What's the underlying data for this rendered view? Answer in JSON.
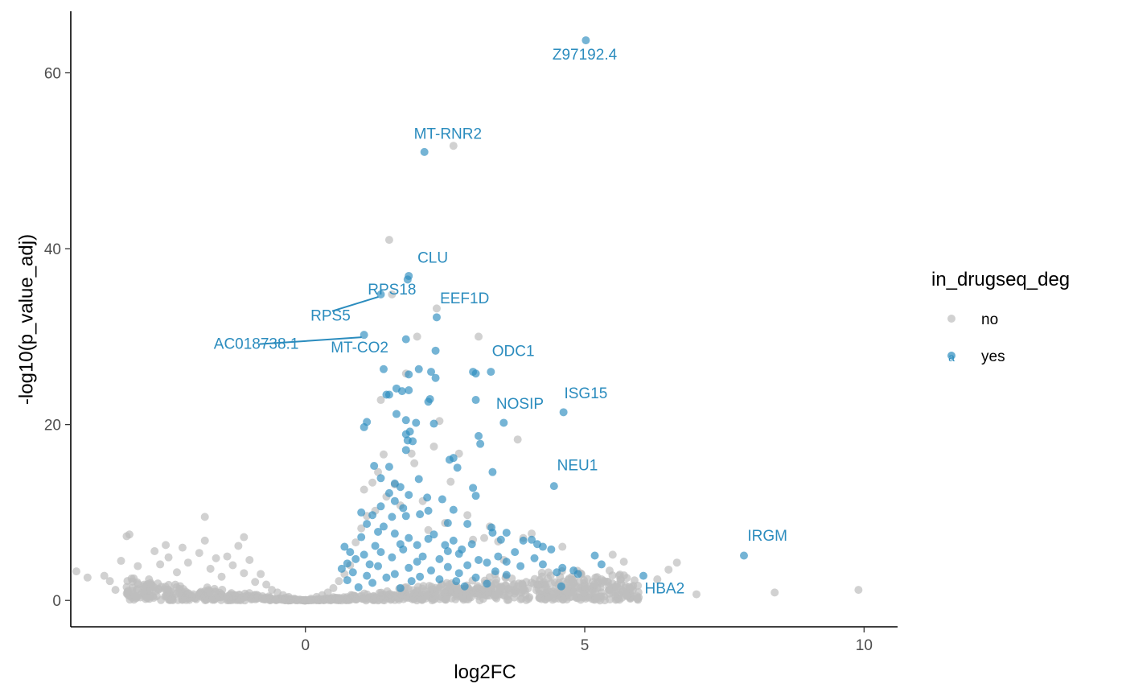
{
  "chart_data": {
    "type": "scatter",
    "title": "",
    "xlabel": "log2FC",
    "ylabel": "-log10(p_value_adj)",
    "xlim": [
      -4.2,
      10.6
    ],
    "ylim": [
      -3,
      67
    ],
    "x_ticks": [
      "0",
      "5",
      "10"
    ],
    "x_tick_values": [
      0,
      5,
      10
    ],
    "y_ticks": [
      "0",
      "20",
      "40",
      "60"
    ],
    "y_tick_values": [
      0,
      20,
      40,
      60
    ],
    "grid": false,
    "legend": {
      "title": "in_drugseq_deg",
      "position": "right",
      "entries": [
        {
          "label": "no",
          "color": "#bebebe"
        },
        {
          "label": "yes",
          "color": "#2b8cbe"
        }
      ]
    },
    "colors": {
      "no": "#bebebe",
      "yes": "#2b8cbe",
      "label": "#2b8cbe"
    },
    "series": [
      {
        "name": "no",
        "points": [
          [
            -4.1,
            3.3
          ],
          [
            -3.9,
            2.6
          ],
          [
            -3.6,
            2.8
          ],
          [
            -3.5,
            2.2
          ],
          [
            -3.4,
            1.2
          ],
          [
            -3.3,
            4.5
          ],
          [
            -3.2,
            7.3
          ],
          [
            -3.15,
            7.5
          ],
          [
            -3.1,
            1.1
          ],
          [
            -3.0,
            3.9
          ],
          [
            -2.9,
            1.6
          ],
          [
            -2.8,
            2.4
          ],
          [
            -2.7,
            5.6
          ],
          [
            -2.6,
            4.1
          ],
          [
            -2.5,
            6.3
          ],
          [
            -2.45,
            4.9
          ],
          [
            -2.3,
            3.2
          ],
          [
            -2.2,
            6.0
          ],
          [
            -2.1,
            4.3
          ],
          [
            -1.9,
            5.4
          ],
          [
            -1.8,
            9.5
          ],
          [
            -1.8,
            6.8
          ],
          [
            -1.7,
            3.6
          ],
          [
            -1.6,
            4.8
          ],
          [
            -1.5,
            2.7
          ],
          [
            -1.4,
            5.0
          ],
          [
            -1.3,
            4.0
          ],
          [
            -1.2,
            6.2
          ],
          [
            -1.1,
            3.1
          ],
          [
            -1.1,
            7.2
          ],
          [
            -1.0,
            4.6
          ],
          [
            -0.9,
            2.1
          ],
          [
            -0.8,
            3.0
          ],
          [
            -0.7,
            1.8
          ],
          [
            -0.6,
            1.2
          ],
          [
            -0.5,
            0.9
          ],
          [
            -0.4,
            0.6
          ],
          [
            -0.3,
            0.4
          ],
          [
            -0.2,
            0.2
          ],
          [
            -0.1,
            0.1
          ],
          [
            0.0,
            0.05
          ],
          [
            0.1,
            0.2
          ],
          [
            0.2,
            0.4
          ],
          [
            0.3,
            0.6
          ],
          [
            0.4,
            0.9
          ],
          [
            0.5,
            1.4
          ],
          [
            0.6,
            2.2
          ],
          [
            0.7,
            3.0
          ],
          [
            0.8,
            4.0
          ],
          [
            0.9,
            6.6
          ],
          [
            1.0,
            8.2
          ],
          [
            1.05,
            12.6
          ],
          [
            1.1,
            9.6
          ],
          [
            1.2,
            13.4
          ],
          [
            1.25,
            10.2
          ],
          [
            1.3,
            14.6
          ],
          [
            1.35,
            22.8
          ],
          [
            1.4,
            16.6
          ],
          [
            1.45,
            11.8
          ],
          [
            1.5,
            41.0
          ],
          [
            1.55,
            34.8
          ],
          [
            1.6,
            13.2
          ],
          [
            1.7,
            10.8
          ],
          [
            1.8,
            25.8
          ],
          [
            1.9,
            16.7
          ],
          [
            1.95,
            15.6
          ],
          [
            2.0,
            30.0
          ],
          [
            2.1,
            11.3
          ],
          [
            2.2,
            8.0
          ],
          [
            2.3,
            17.5
          ],
          [
            2.35,
            33.2
          ],
          [
            2.4,
            20.4
          ],
          [
            2.5,
            8.8
          ],
          [
            2.6,
            13.5
          ],
          [
            2.65,
            51.7
          ],
          [
            2.75,
            16.7
          ],
          [
            2.9,
            9.7
          ],
          [
            3.0,
            6.9
          ],
          [
            3.1,
            30.0
          ],
          [
            3.2,
            7.1
          ],
          [
            3.3,
            8.4
          ],
          [
            3.45,
            6.7
          ],
          [
            3.55,
            4.6
          ],
          [
            3.8,
            18.3
          ],
          [
            3.9,
            7.1
          ],
          [
            4.05,
            7.6
          ],
          [
            4.2,
            0.3
          ],
          [
            4.35,
            0.4
          ],
          [
            4.6,
            6.1
          ],
          [
            4.8,
            2.4
          ],
          [
            5.3,
            0.9
          ],
          [
            5.5,
            5.2
          ],
          [
            5.55,
            0.8
          ],
          [
            5.7,
            4.4
          ],
          [
            5.75,
            0.5
          ],
          [
            6.3,
            2.4
          ],
          [
            6.5,
            3.5
          ],
          [
            6.65,
            4.3
          ],
          [
            7.0,
            0.7
          ],
          [
            8.4,
            0.9
          ],
          [
            9.9,
            1.2
          ]
        ]
      },
      {
        "name": "yes",
        "points": [
          [
            5.02,
            63.7
          ],
          [
            2.13,
            51.0
          ],
          [
            1.85,
            36.9
          ],
          [
            1.83,
            36.5
          ],
          [
            1.35,
            34.8
          ],
          [
            2.35,
            32.2
          ],
          [
            1.05,
            30.2
          ],
          [
            1.8,
            29.7
          ],
          [
            2.33,
            28.4
          ],
          [
            1.4,
            26.3
          ],
          [
            2.03,
            26.3
          ],
          [
            2.25,
            26.0
          ],
          [
            3.0,
            26.0
          ],
          [
            3.05,
            25.8
          ],
          [
            3.32,
            26.0
          ],
          [
            1.85,
            25.7
          ],
          [
            2.33,
            25.3
          ],
          [
            1.63,
            24.1
          ],
          [
            1.73,
            23.8
          ],
          [
            1.85,
            23.9
          ],
          [
            1.45,
            23.4
          ],
          [
            1.5,
            23.4
          ],
          [
            2.23,
            22.9
          ],
          [
            2.2,
            22.6
          ],
          [
            3.05,
            22.8
          ],
          [
            4.62,
            21.4
          ],
          [
            1.63,
            21.2
          ],
          [
            1.8,
            20.5
          ],
          [
            1.98,
            20.2
          ],
          [
            2.3,
            20.1
          ],
          [
            3.55,
            20.2
          ],
          [
            1.1,
            20.3
          ],
          [
            1.05,
            19.7
          ],
          [
            1.87,
            19.2
          ],
          [
            1.8,
            18.9
          ],
          [
            1.83,
            18.2
          ],
          [
            1.92,
            18.1
          ],
          [
            3.1,
            18.7
          ],
          [
            3.13,
            17.8
          ],
          [
            1.8,
            17.1
          ],
          [
            2.65,
            16.2
          ],
          [
            2.58,
            16.0
          ],
          [
            2.72,
            15.1
          ],
          [
            1.5,
            15.2
          ],
          [
            3.35,
            14.6
          ],
          [
            1.23,
            15.3
          ],
          [
            1.35,
            13.9
          ],
          [
            1.6,
            13.3
          ],
          [
            1.7,
            12.9
          ],
          [
            2.03,
            13.8
          ],
          [
            4.45,
            13.0
          ],
          [
            3.0,
            12.8
          ],
          [
            3.05,
            11.9
          ],
          [
            1.5,
            12.2
          ],
          [
            1.85,
            12.0
          ],
          [
            1.6,
            11.3
          ],
          [
            2.18,
            11.7
          ],
          [
            2.45,
            11.5
          ],
          [
            1.35,
            10.7
          ],
          [
            1.75,
            10.5
          ],
          [
            2.2,
            10.2
          ],
          [
            2.65,
            10.3
          ],
          [
            1.0,
            10.0
          ],
          [
            1.2,
            9.7
          ],
          [
            1.55,
            9.5
          ],
          [
            1.8,
            9.6
          ],
          [
            2.05,
            9.8
          ],
          [
            2.55,
            8.8
          ],
          [
            1.1,
            8.7
          ],
          [
            1.4,
            8.4
          ],
          [
            2.9,
            8.7
          ],
          [
            3.33,
            8.3
          ],
          [
            1.3,
            7.8
          ],
          [
            1.6,
            7.6
          ],
          [
            2.3,
            7.5
          ],
          [
            3.35,
            7.7
          ],
          [
            3.6,
            7.7
          ],
          [
            1.0,
            7.2
          ],
          [
            1.85,
            7.1
          ],
          [
            2.2,
            7.0
          ],
          [
            2.65,
            6.8
          ],
          [
            3.5,
            6.9
          ],
          [
            3.9,
            6.8
          ],
          [
            4.15,
            6.4
          ],
          [
            4.05,
            6.9
          ],
          [
            0.7,
            6.1
          ],
          [
            1.25,
            6.2
          ],
          [
            1.7,
            6.4
          ],
          [
            2.0,
            6.3
          ],
          [
            2.5,
            6.3
          ],
          [
            2.98,
            6.4
          ],
          [
            4.25,
            6.1
          ],
          [
            4.4,
            5.8
          ],
          [
            0.8,
            5.5
          ],
          [
            1.35,
            5.5
          ],
          [
            1.75,
            5.8
          ],
          [
            2.55,
            5.6
          ],
          [
            2.8,
            5.8
          ],
          [
            3.75,
            5.5
          ],
          [
            1.05,
            5.2
          ],
          [
            2.1,
            5.0
          ],
          [
            2.75,
            5.3
          ],
          [
            3.45,
            5.0
          ],
          [
            4.1,
            4.8
          ],
          [
            5.18,
            5.1
          ],
          [
            7.85,
            5.1
          ],
          [
            0.9,
            4.7
          ],
          [
            1.55,
            4.9
          ],
          [
            2.4,
            4.7
          ],
          [
            3.1,
            4.6
          ],
          [
            3.6,
            4.4
          ],
          [
            4.25,
            4.1
          ],
          [
            5.3,
            4.1
          ],
          [
            0.75,
            4.2
          ],
          [
            1.15,
            4.1
          ],
          [
            2.0,
            4.4
          ],
          [
            2.9,
            4.0
          ],
          [
            3.25,
            4.3
          ],
          [
            3.85,
            3.9
          ],
          [
            1.3,
            3.9
          ],
          [
            1.85,
            3.7
          ],
          [
            2.55,
            3.8
          ],
          [
            4.6,
            3.7
          ],
          [
            4.8,
            3.4
          ],
          [
            0.65,
            3.6
          ],
          [
            2.25,
            3.4
          ],
          [
            3.4,
            3.3
          ],
          [
            4.5,
            3.2
          ],
          [
            0.85,
            3.2
          ],
          [
            1.6,
            3.0
          ],
          [
            2.75,
            3.1
          ],
          [
            3.6,
            2.9
          ],
          [
            4.88,
            3.0
          ],
          [
            1.1,
            2.8
          ],
          [
            2.05,
            2.7
          ],
          [
            3.05,
            2.6
          ],
          [
            1.45,
            2.6
          ],
          [
            2.4,
            2.4
          ],
          [
            0.75,
            2.3
          ],
          [
            1.9,
            2.2
          ],
          [
            2.7,
            2.2
          ],
          [
            1.2,
            2.0
          ],
          [
            3.25,
            1.9
          ],
          [
            4.58,
            1.6
          ],
          [
            6.05,
            2.8
          ],
          [
            0.95,
            1.5
          ],
          [
            1.7,
            1.4
          ],
          [
            2.85,
            1.6
          ]
        ]
      }
    ],
    "annotations": [
      {
        "label": "Z97192.4",
        "x": 5.02,
        "y": 63.7,
        "tx": 5.0,
        "ty": 61.5
      },
      {
        "label": "MT-RNR2",
        "x": 2.13,
        "y": 51.0,
        "tx": 2.55,
        "ty": 52.5
      },
      {
        "label": "CLU",
        "x": 1.83,
        "y": 36.5,
        "tx": 2.28,
        "ty": 38.4
      },
      {
        "label": "RPS18",
        "x": 1.35,
        "y": 34.8,
        "tx": 1.55,
        "ty": 34.8
      },
      {
        "label": "EEF1D",
        "x": 2.35,
        "y": 32.2,
        "tx": 2.85,
        "ty": 33.8
      },
      {
        "label": "RPS5",
        "x": 1.35,
        "y": 34.8,
        "tx": 0.45,
        "ty": 31.8,
        "line": true
      },
      {
        "label": "AC018738.1",
        "x": 1.05,
        "y": 30.2,
        "tx": -0.88,
        "ty": 28.6,
        "line": true
      },
      {
        "label": "MT-CO2",
        "x": 1.8,
        "y": 29.7,
        "tx": 0.97,
        "ty": 28.2
      },
      {
        "label": "ODC1",
        "x": 3.32,
        "y": 26.0,
        "tx": 3.72,
        "ty": 27.8
      },
      {
        "label": "ISG15",
        "x": 4.62,
        "y": 21.4,
        "tx": 5.02,
        "ty": 23.0
      },
      {
        "label": "NOSIP",
        "x": 3.55,
        "y": 20.2,
        "tx": 3.84,
        "ty": 21.8
      },
      {
        "label": "NEU1",
        "x": 4.45,
        "y": 13.0,
        "tx": 4.87,
        "ty": 14.8
      },
      {
        "label": "IRGM",
        "x": 7.85,
        "y": 5.1,
        "tx": 8.27,
        "ty": 6.8
      },
      {
        "label": "HBA2",
        "x": 6.05,
        "y": 2.8,
        "tx": 6.43,
        "ty": 0.8
      }
    ]
  }
}
